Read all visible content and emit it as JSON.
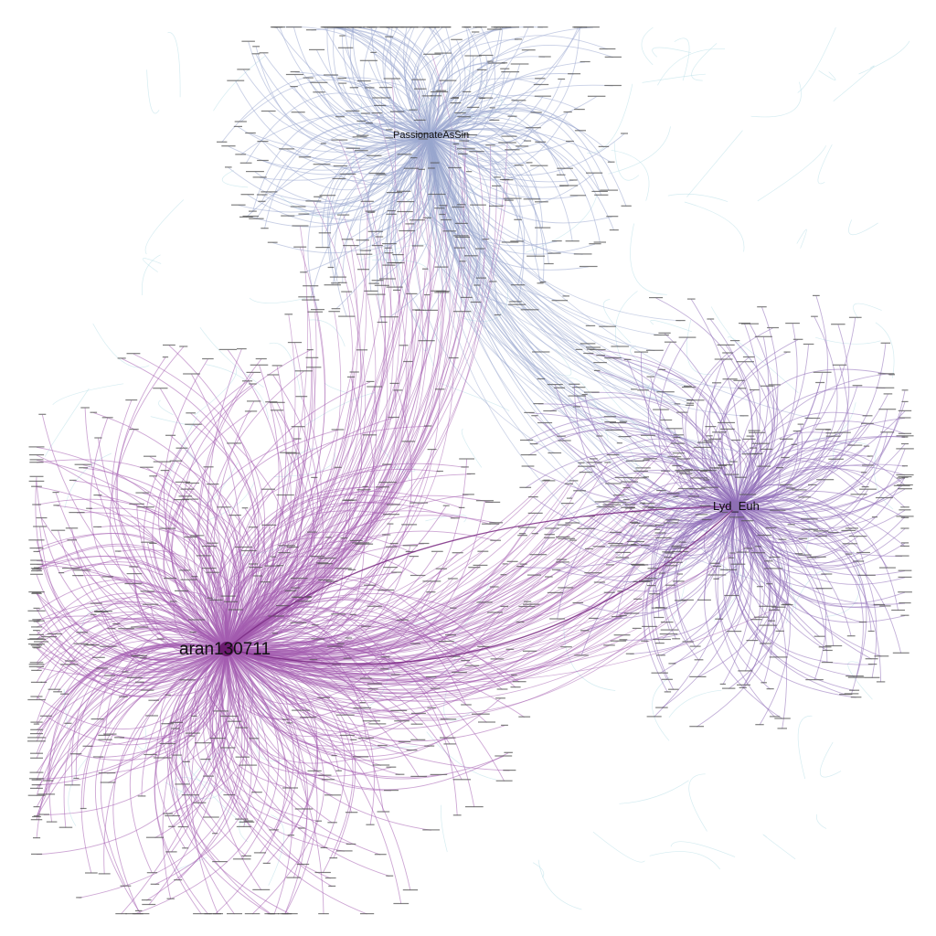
{
  "graph": {
    "hubs": [
      {
        "id": "aran",
        "label": "aran130711",
        "color": "#6a1b6e",
        "edge_color": "#a45cb0"
      },
      {
        "id": "passionate",
        "label": "PassionateAsSin",
        "color": "#9aa6cf",
        "edge_color": "#9aa8d0"
      },
      {
        "id": "lyd",
        "label": "Lyd_Euh",
        "color": "#8d6fb3",
        "edge_color": "#8f6db8"
      }
    ],
    "colors": {
      "background": "#ffffff",
      "peripheral_edge": "#b9dfe8",
      "leaf_label": "#555555"
    },
    "strong_links": [
      {
        "from": "aran",
        "to": "lyd"
      }
    ]
  }
}
